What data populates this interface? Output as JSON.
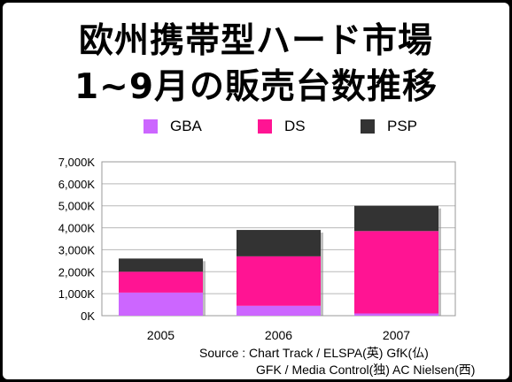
{
  "title": {
    "line1": "欧州携帯型ハード市場",
    "line2": "1~9月の販売台数推移"
  },
  "legend": [
    {
      "name": "GBA",
      "color": "#cc66ff"
    },
    {
      "name": "DS",
      "color": "#ff1493"
    },
    {
      "name": "PSP",
      "color": "#333333"
    }
  ],
  "chart_data": {
    "type": "bar",
    "stacked": true,
    "categories": [
      "2005",
      "2006",
      "2007"
    ],
    "series": [
      {
        "name": "GBA",
        "color": "#cc66ff",
        "values": [
          1050,
          450,
          100
        ]
      },
      {
        "name": "DS",
        "color": "#ff1493",
        "values": [
          950,
          2250,
          3750
        ]
      },
      {
        "name": "PSP",
        "color": "#333333",
        "values": [
          600,
          1200,
          1150
        ]
      }
    ],
    "yticks": [
      "0K",
      "1,000K",
      "2,000K",
      "3,000K",
      "4,000K",
      "5,000K",
      "6,000K",
      "7,000K"
    ],
    "ylim": [
      0,
      7000
    ],
    "grid": true,
    "legend_position": "top"
  },
  "source": {
    "line1": "Source : Chart Track / ELSPA(英) GfK(仏)",
    "line2": "GFK / Media Control(独) AC Nielsen(西)"
  }
}
